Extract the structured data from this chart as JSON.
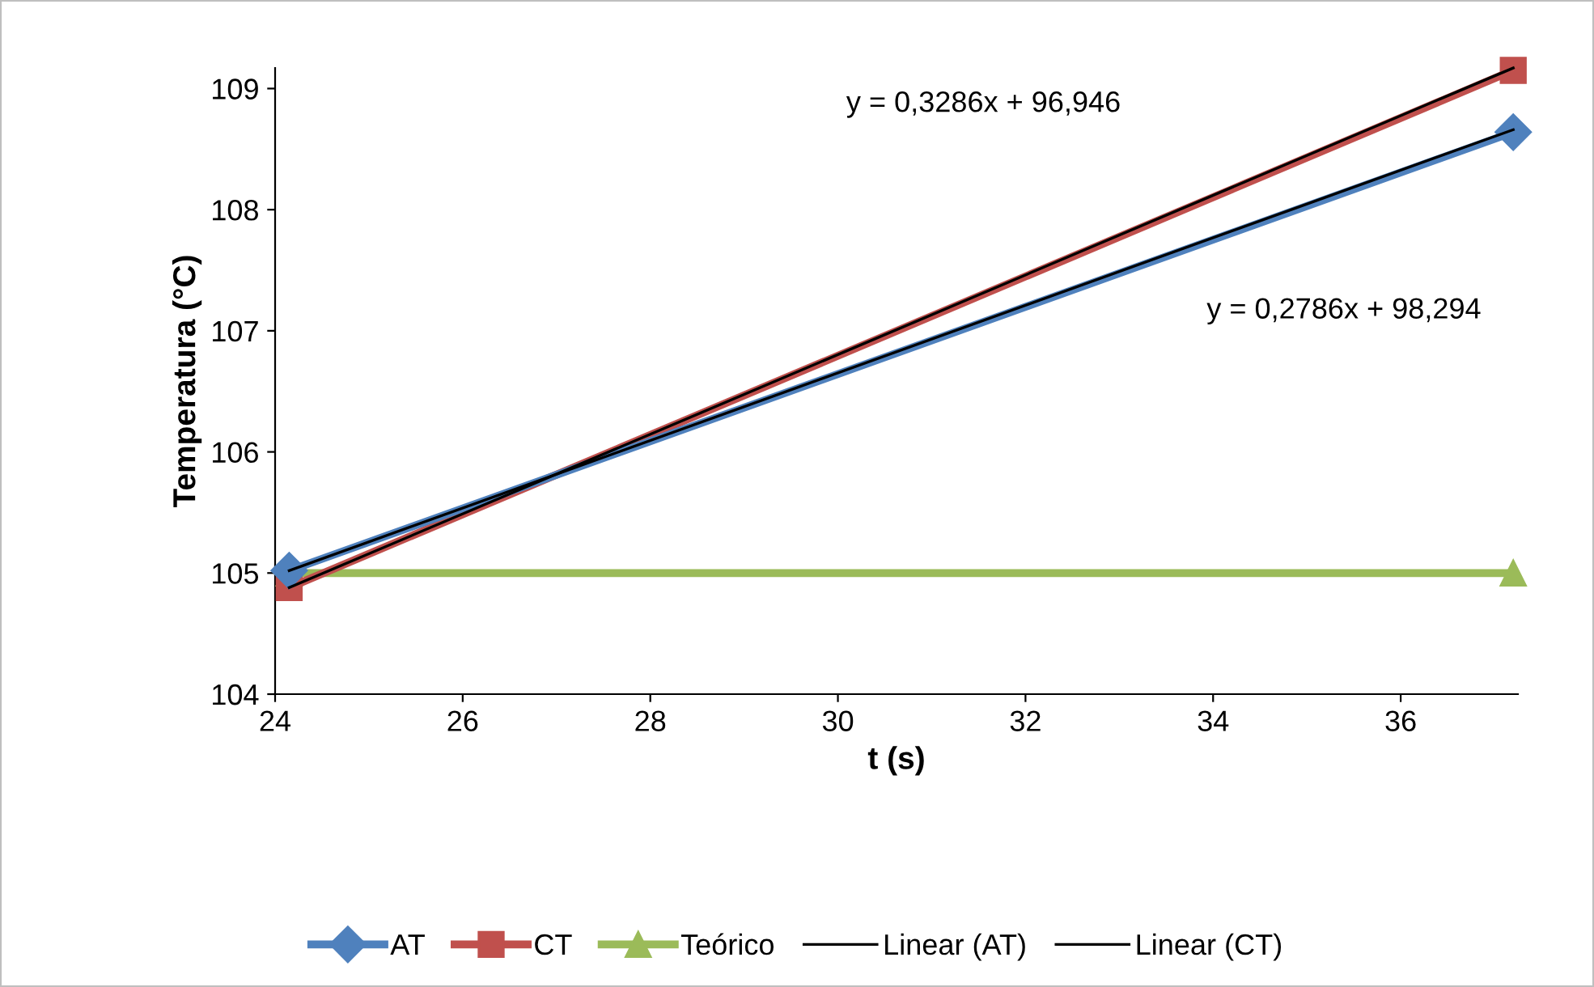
{
  "chart_data": {
    "type": "line",
    "xlabel": "t (s)",
    "ylabel": "Temperatura (°C)",
    "xlim": [
      24,
      37.25
    ],
    "xticks": [
      24,
      26,
      28,
      30,
      32,
      34,
      36
    ],
    "ylim": [
      104,
      109.17
    ],
    "yticks": [
      104,
      105,
      106,
      107,
      108,
      109
    ],
    "grid": false,
    "legend": "bottom",
    "x": [
      24.15,
      37.2
    ],
    "annotations": [
      "y = 0,3286x + 96,946",
      "y = 0,2786x + 98,294"
    ],
    "series": [
      {
        "name": "AT",
        "color": "#4f81bd",
        "values": [
          105.02,
          108.64
        ],
        "marker": "diamond"
      },
      {
        "name": "CT",
        "color": "#c0504d",
        "values": [
          104.88,
          109.15
        ],
        "marker": "square"
      },
      {
        "name": "Teórico",
        "color": "#9bbb59",
        "values": [
          105,
          105
        ],
        "marker": "triangle"
      },
      {
        "name": "Linear (AT)",
        "color": "#000000",
        "values": [
          105.02,
          108.66
        ],
        "marker": "none"
      },
      {
        "name": "Linear (CT)",
        "color": "#000000",
        "values": [
          104.88,
          109.17
        ],
        "marker": "none"
      }
    ]
  }
}
